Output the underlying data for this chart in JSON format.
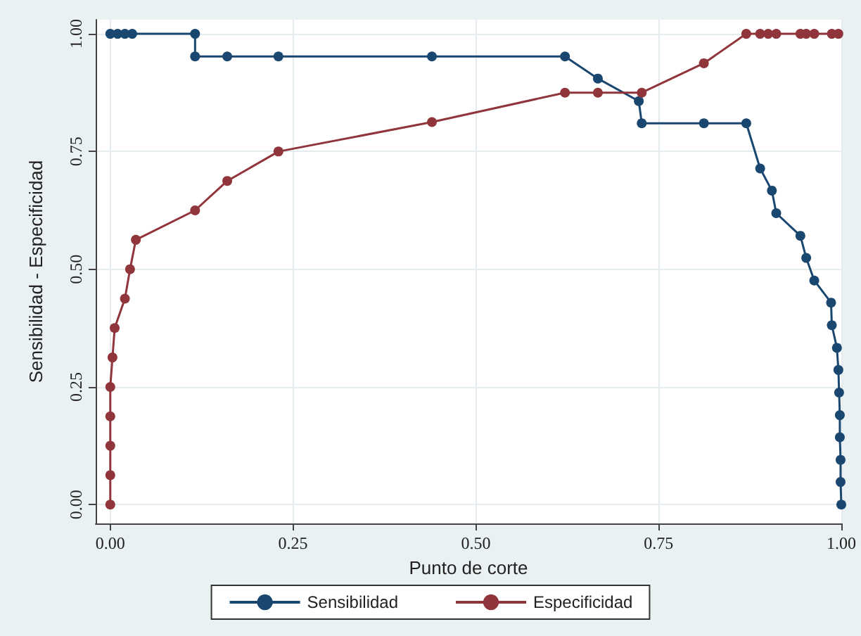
{
  "chart_data": {
    "type": "line",
    "xlabel": "Punto de corte",
    "ylabel": "Sensibilidad - Especificidad",
    "xlim": [
      -0.02,
      1.0
    ],
    "ylim": [
      -0.04,
      1.03
    ],
    "xticks": [
      {
        "value": 0,
        "label": "0.00"
      },
      {
        "value": 0.25,
        "label": "0.25"
      },
      {
        "value": 0.5,
        "label": "0.50"
      },
      {
        "value": 0.75,
        "label": "0.75"
      },
      {
        "value": 1,
        "label": "1.00"
      }
    ],
    "yticks": [
      {
        "value": 0,
        "label": "0.00"
      },
      {
        "value": 0.25,
        "label": "0.25"
      },
      {
        "value": 0.5,
        "label": "0.50"
      },
      {
        "value": 0.75,
        "label": "0.75"
      },
      {
        "value": 1,
        "label": "1.00"
      }
    ],
    "grid": true,
    "legend": "bottom",
    "marker": "circle",
    "line_style": "solid",
    "series": [
      {
        "name": "Sensibilidad",
        "color": "#1a476f",
        "x": [
          0,
          0.01,
          0.02,
          0.03,
          0.116,
          0.116,
          0.16,
          0.23,
          0.44,
          0.622,
          0.667,
          0.723,
          0.727,
          0.812,
          0.87,
          0.889,
          0.905,
          0.911,
          0.944,
          0.952,
          0.963,
          0.986,
          0.987,
          0.994,
          0.996,
          0.997,
          0.998,
          0.998,
          0.999,
          0.999,
          1
        ],
        "values": [
          1,
          1,
          1,
          1,
          1,
          0.952,
          0.952,
          0.952,
          0.952,
          0.952,
          0.905,
          0.857,
          0.81,
          0.81,
          0.81,
          0.714,
          0.667,
          0.619,
          0.571,
          0.524,
          0.476,
          0.429,
          0.381,
          0.333,
          0.286,
          0.238,
          0.19,
          0.143,
          0.095,
          0.048,
          0
        ]
      },
      {
        "name": "Especificidad",
        "color": "#90353b",
        "x": [
          0,
          0,
          0,
          0,
          0,
          0.003,
          0.006,
          0.02,
          0.027,
          0.035,
          0.116,
          0.16,
          0.23,
          0.44,
          0.622,
          0.667,
          0.727,
          0.812,
          0.87,
          0.889,
          0.9,
          0.911,
          0.944,
          0.952,
          0.963,
          0.987,
          0.996
        ],
        "values": [
          0,
          0.0625,
          0.125,
          0.1875,
          0.25,
          0.3125,
          0.375,
          0.4375,
          0.5,
          0.5625,
          0.625,
          0.6875,
          0.75,
          0.8125,
          0.875,
          0.875,
          0.875,
          0.9375,
          1,
          1,
          1,
          1,
          1,
          1,
          1,
          1,
          1
        ]
      }
    ]
  }
}
